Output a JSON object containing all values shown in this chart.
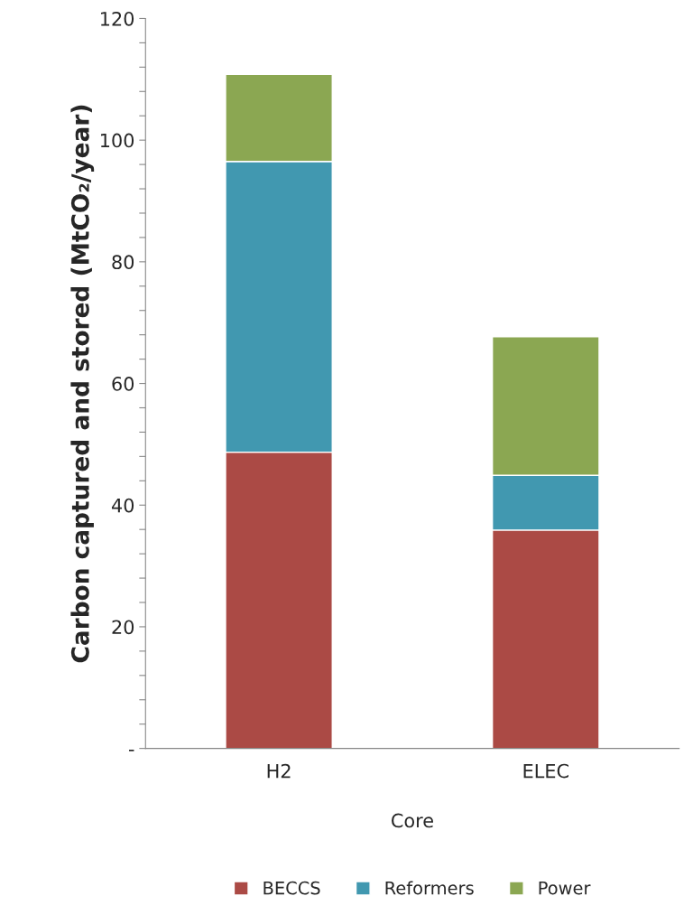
{
  "chart_data": {
    "type": "bar",
    "stacked": true,
    "categories": [
      "H2",
      "ELEC"
    ],
    "xlabel": "Core",
    "ylabel": "Carbon captured and stored (MtCO₂/year)",
    "series": [
      {
        "name": "BECCS",
        "color": "#ab4a45",
        "values": [
          48.7,
          35.9
        ]
      },
      {
        "name": "Reformers",
        "color": "#4198b0",
        "values": [
          47.8,
          9.0
        ]
      },
      {
        "name": "Power",
        "color": "#8ba752",
        "values": [
          14.3,
          22.8
        ]
      }
    ],
    "ylim": [
      0,
      120
    ],
    "yticks": [
      {
        "value": 0,
        "label": "-"
      },
      {
        "value": 4,
        "label": null
      },
      {
        "value": 8,
        "label": null
      },
      {
        "value": 12,
        "label": null
      },
      {
        "value": 16,
        "label": null
      },
      20,
      {
        "value": 24,
        "label": null
      },
      {
        "value": 28,
        "label": null
      },
      {
        "value": 32,
        "label": null
      },
      {
        "value": 36,
        "label": null
      },
      40,
      {
        "value": 44,
        "label": null
      },
      {
        "value": 48,
        "label": null
      },
      {
        "value": 52,
        "label": null
      },
      {
        "value": 56,
        "label": null
      },
      60,
      {
        "value": 64,
        "label": null
      },
      {
        "value": 68,
        "label": null
      },
      {
        "value": 72,
        "label": null
      },
      {
        "value": 76,
        "label": null
      },
      80,
      {
        "value": 84,
        "label": null
      },
      {
        "value": 88,
        "label": null
      },
      {
        "value": 92,
        "label": null
      },
      {
        "value": 96,
        "label": null
      },
      100,
      {
        "value": 104,
        "label": null
      },
      {
        "value": 108,
        "label": null
      },
      {
        "value": 112,
        "label": null
      },
      {
        "value": 116,
        "label": null
      },
      120
    ],
    "grid": false,
    "legend": "bottom"
  }
}
